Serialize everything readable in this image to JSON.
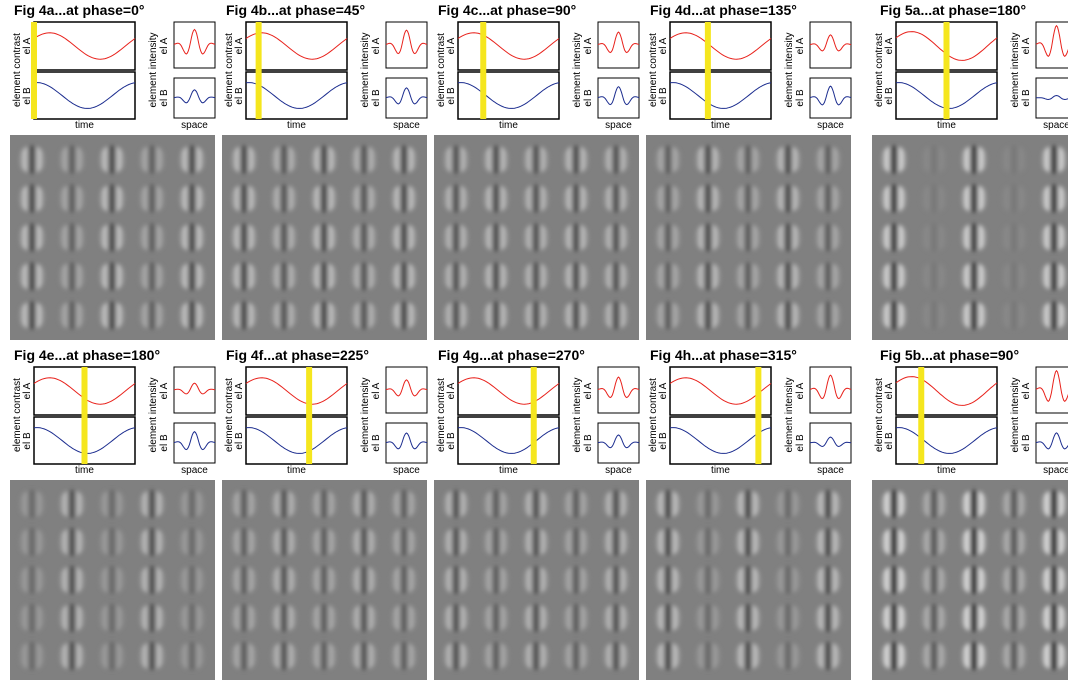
{
  "panels": [
    {
      "title": "Fig 4a...at phase=0°"
    },
    {
      "title": "Fig 4b...at phase=45°"
    },
    {
      "title": "Fig 4c...at phase=90°"
    },
    {
      "title": "Fig 4d...at phase=135°"
    },
    {
      "title": "Fig 5a...at phase=180°"
    },
    {
      "title": "Fig 4e...at phase=180°"
    },
    {
      "title": "Fig 4f...at phase=225°"
    },
    {
      "title": "Fig 4g...at phase=270°"
    },
    {
      "title": "Fig 4h...at phase=315°"
    },
    {
      "title": "Fig 5b...at phase=90°"
    }
  ],
  "labels": {
    "contrast": "element contrast",
    "el_a": "el A",
    "el_b": "el B",
    "time": "time",
    "intensity": "element intensity",
    "space": "space"
  }
}
